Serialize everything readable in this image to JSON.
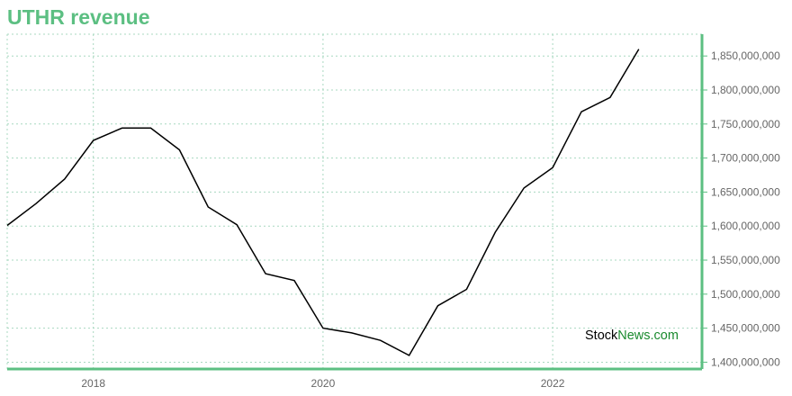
{
  "chart_data": {
    "type": "line",
    "title": "UTHR revenue",
    "xlabel": "",
    "ylabel": "",
    "x": [
      2017.25,
      2017.5,
      2017.75,
      2018.0,
      2018.25,
      2018.5,
      2018.75,
      2019.0,
      2019.25,
      2019.5,
      2019.75,
      2020.0,
      2020.25,
      2020.5,
      2020.75,
      2021.0,
      2021.25,
      2021.5,
      2021.75,
      2022.0,
      2022.25,
      2022.5,
      2022.75
    ],
    "values": [
      1601000000,
      1633000000,
      1669000000,
      1726000000,
      1744000000,
      1744000000,
      1712000000,
      1628000000,
      1602000000,
      1530000000,
      1520000000,
      1450000000,
      1443000000,
      1432000000,
      1410000000,
      1483000000,
      1507000000,
      1591000000,
      1656000000,
      1686000000,
      1768000000,
      1789000000,
      1860000000
    ],
    "x_ticks": [
      2018,
      2020,
      2022
    ],
    "x_tick_labels": [
      "2018",
      "2020",
      "2022"
    ],
    "y_ticks": [
      1400000000,
      1450000000,
      1500000000,
      1550000000,
      1600000000,
      1650000000,
      1700000000,
      1750000000,
      1800000000,
      1850000000
    ],
    "y_tick_labels": [
      "1,400,000,000",
      "1,450,000,000",
      "1,500,000,000",
      "1,550,000,000",
      "1,600,000,000",
      "1,650,000,000",
      "1,700,000,000",
      "1,750,000,000",
      "1,800,000,000",
      "1,850,000,000"
    ],
    "xlim": [
      2017.25,
      2023.3
    ],
    "ylim": [
      1390000000,
      1882000000
    ],
    "grid": true,
    "y_axis_side": "right",
    "line_color": "#000000",
    "accent_color": "#5cbf82"
  },
  "watermark": {
    "part1": "Stock",
    "part2": "News.com"
  }
}
